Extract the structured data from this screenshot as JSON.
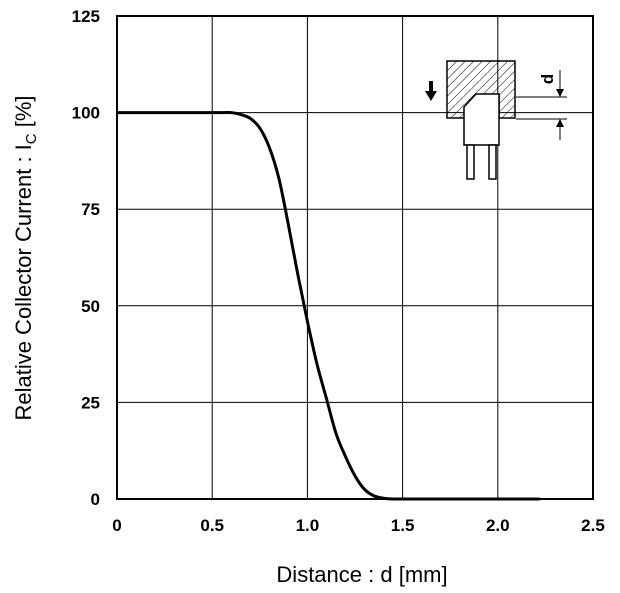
{
  "chart_data": {
    "type": "line",
    "xlabel": "Distance : d [mm]",
    "ylabel_main": "Relative Collector Current : I",
    "ylabel_sub": "C",
    "ylabel_tail": " [%]",
    "xlim": [
      0,
      2.5
    ],
    "ylim": [
      0,
      125
    ],
    "grid": true,
    "x_ticks": [
      "0",
      "0.5",
      "1.0",
      "1.5",
      "2.0",
      "2.5"
    ],
    "x_tick_values": [
      0,
      0.5,
      1.0,
      1.5,
      2.0,
      2.5
    ],
    "y_ticks": [
      "0",
      "25",
      "50",
      "75",
      "100",
      "125"
    ],
    "y_tick_values": [
      0,
      25,
      50,
      75,
      100,
      125
    ],
    "series": [
      {
        "x": [
          0,
          0.5,
          0.6,
          0.65,
          0.7,
          0.75,
          0.8,
          0.85,
          0.9,
          0.95,
          1.0,
          1.05,
          1.1,
          1.15,
          1.2,
          1.25,
          1.3,
          1.35,
          1.4,
          1.45,
          1.5,
          2.0,
          2.22
        ],
        "y": [
          100,
          100,
          100,
          99.5,
          98.5,
          96,
          91,
          83,
          71,
          58,
          46,
          35,
          26,
          17,
          11,
          6,
          2.5,
          0.8,
          0.2,
          0,
          0,
          0,
          0
        ]
      }
    ],
    "inset_label": "d"
  }
}
